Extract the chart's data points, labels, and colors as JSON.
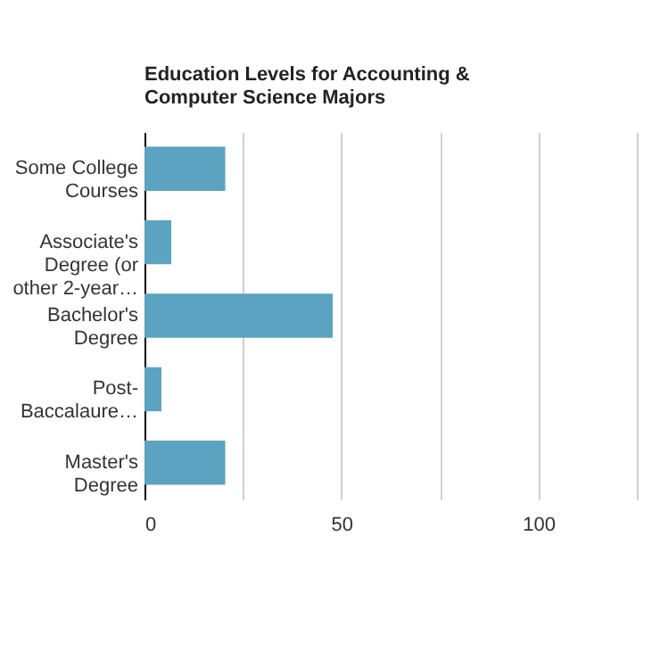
{
  "chart_data": {
    "type": "bar",
    "orientation": "horizontal",
    "title": "Education Levels for Accounting & Computer Science Majors",
    "categories": [
      "Some College Courses",
      "Associate's Degree (or other 2-year…",
      "Bachelor's Degree",
      "Post-Baccalaure…",
      "Master's Degree"
    ],
    "values": [
      20.5,
      6.8,
      47.8,
      4.3,
      20.5
    ],
    "color": "#5ba3c0",
    "xlim": [
      0,
      125
    ],
    "xticks": [
      0,
      {
        "value": 25,
        "label": null
      },
      50,
      {
        "value": 75,
        "label": null
      },
      100,
      {
        "value": 125,
        "label": null
      }
    ],
    "grid": "x"
  }
}
